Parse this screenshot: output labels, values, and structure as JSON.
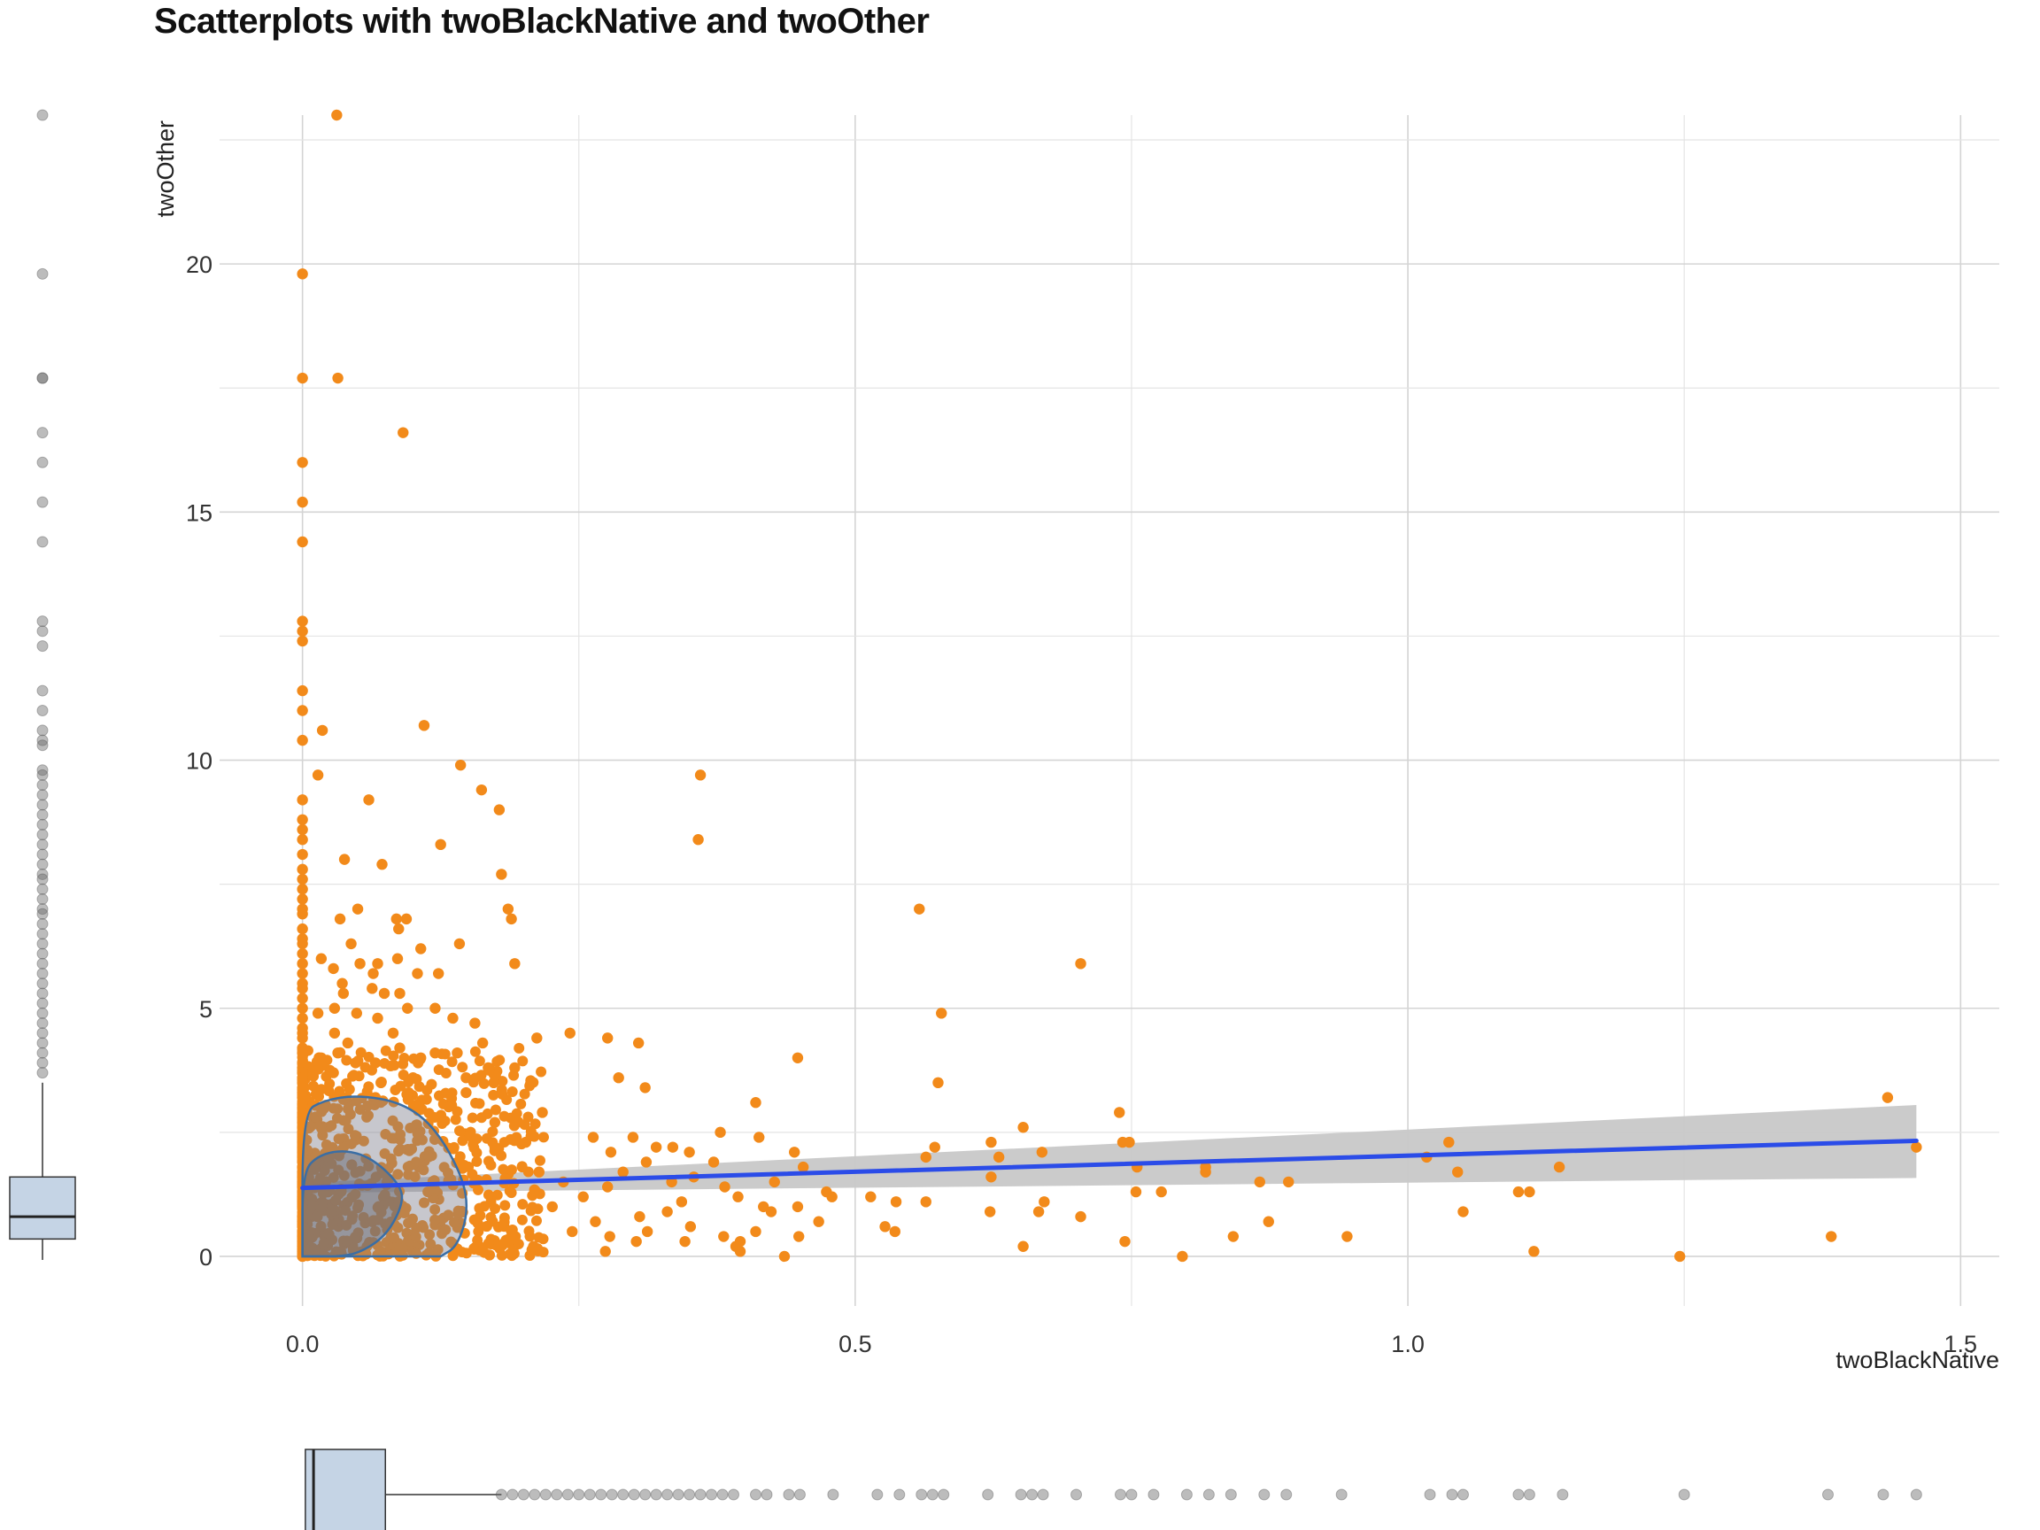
{
  "chart_data": {
    "type": "scatter",
    "title": "Scatterplots with twoBlackNative and twoOther",
    "xlabel": "twoBlackNative",
    "ylabel": "twoOther",
    "xlim": [
      -0.075,
      1.535
    ],
    "ylim": [
      -1.0,
      23.0
    ],
    "x_ticks": [
      0.0,
      0.5,
      1.0,
      1.5
    ],
    "x_tick_labels": [
      "0.0",
      "0.5",
      "1.0",
      "1.5"
    ],
    "y_ticks": [
      0,
      5,
      10,
      15,
      20
    ],
    "y_tick_labels": [
      "0",
      "5",
      "10",
      "15",
      "20"
    ],
    "grid": true,
    "point_color": "#f28a1a",
    "regression": {
      "type": "linear",
      "x_range": [
        0.0,
        1.46
      ],
      "intercept": 1.38,
      "slope": 0.65,
      "line_color": "#2b4ce8",
      "band_color": "#c8c8c8",
      "band_lower": [
        1.28,
        1.58
      ],
      "band_upper": [
        1.48,
        3.05
      ]
    },
    "density_contours": [
      {
        "level": "outer",
        "fill": "#7a7a88",
        "stroke": "#3a6ea5",
        "path": [
          [
            0.0,
            0.0
          ],
          [
            0.0,
            2.9
          ],
          [
            0.02,
            3.15
          ],
          [
            0.05,
            3.25
          ],
          [
            0.09,
            3.1
          ],
          [
            0.12,
            2.6
          ],
          [
            0.145,
            1.6
          ],
          [
            0.15,
            0.9
          ],
          [
            0.14,
            0.2
          ],
          [
            0.125,
            0.0
          ]
        ]
      },
      {
        "level": "inner",
        "fill": "#6e6e76",
        "stroke": "#3a6ea5",
        "path": [
          [
            0.0,
            0.0
          ],
          [
            0.0,
            1.7
          ],
          [
            0.015,
            2.05
          ],
          [
            0.04,
            2.15
          ],
          [
            0.065,
            1.95
          ],
          [
            0.09,
            1.4
          ],
          [
            0.09,
            1.0
          ],
          [
            0.075,
            0.4
          ],
          [
            0.05,
            0.05
          ],
          [
            0.03,
            0.0
          ]
        ]
      }
    ],
    "points": [
      [
        0.031,
        23.0
      ],
      [
        0.0,
        19.8
      ],
      [
        0.0,
        17.7
      ],
      [
        0.032,
        17.7
      ],
      [
        0.091,
        16.6
      ],
      [
        0.0,
        16.0
      ],
      [
        0.0,
        15.2
      ],
      [
        0.0,
        14.4
      ],
      [
        0.0,
        12.8
      ],
      [
        0.0,
        12.6
      ],
      [
        0.0,
        12.4
      ],
      [
        0.0,
        11.4
      ],
      [
        0.0,
        11.0
      ],
      [
        0.11,
        10.7
      ],
      [
        0.018,
        10.6
      ],
      [
        0.0,
        10.4
      ],
      [
        0.143,
        9.9
      ],
      [
        0.014,
        9.7
      ],
      [
        0.36,
        9.7
      ],
      [
        0.162,
        9.4
      ],
      [
        0.06,
        9.2
      ],
      [
        0.0,
        9.2
      ],
      [
        0.178,
        9.0
      ],
      [
        0.0,
        8.8
      ],
      [
        0.0,
        8.6
      ],
      [
        0.125,
        8.3
      ],
      [
        0.358,
        8.4
      ],
      [
        0.0,
        8.4
      ],
      [
        0.0,
        8.1
      ],
      [
        0.038,
        8.0
      ],
      [
        0.072,
        7.9
      ],
      [
        0.0,
        7.8
      ],
      [
        0.0,
        7.6
      ],
      [
        0.18,
        7.7
      ],
      [
        0.0,
        7.4
      ],
      [
        0.0,
        7.2
      ],
      [
        0.0,
        7.0
      ],
      [
        0.186,
        7.0
      ],
      [
        0.558,
        7.0
      ],
      [
        0.05,
        7.0
      ],
      [
        0.0,
        6.9
      ],
      [
        0.085,
        6.8
      ],
      [
        0.034,
        6.8
      ],
      [
        0.094,
        6.8
      ],
      [
        0.189,
        6.8
      ],
      [
        0.0,
        6.6
      ],
      [
        0.087,
        6.6
      ],
      [
        0.0,
        6.4
      ],
      [
        0.0,
        6.3
      ],
      [
        0.044,
        6.3
      ],
      [
        0.142,
        6.3
      ],
      [
        0.107,
        6.2
      ],
      [
        0.0,
        6.1
      ],
      [
        0.017,
        6.0
      ],
      [
        0.086,
        6.0
      ],
      [
        0.068,
        5.9
      ],
      [
        0.0,
        5.9
      ],
      [
        0.052,
        5.9
      ],
      [
        0.192,
        5.9
      ],
      [
        0.704,
        5.9
      ],
      [
        0.028,
        5.8
      ],
      [
        0.0,
        5.7
      ],
      [
        0.064,
        5.7
      ],
      [
        0.104,
        5.7
      ],
      [
        0.0,
        5.5
      ],
      [
        0.036,
        5.5
      ],
      [
        0.123,
        5.7
      ],
      [
        0.0,
        5.4
      ],
      [
        0.063,
        5.4
      ],
      [
        0.074,
        5.3
      ],
      [
        0.0,
        5.2
      ],
      [
        0.037,
        5.3
      ],
      [
        0.088,
        5.3
      ],
      [
        0.0,
        5.0
      ],
      [
        0.029,
        5.0
      ],
      [
        0.12,
        5.0
      ],
      [
        0.049,
        4.9
      ],
      [
        0.095,
        5.0
      ],
      [
        0.578,
        4.9
      ],
      [
        0.0,
        4.8
      ],
      [
        0.014,
        4.9
      ],
      [
        0.068,
        4.8
      ],
      [
        0.136,
        4.8
      ],
      [
        0.0,
        4.6
      ],
      [
        0.156,
        4.7
      ],
      [
        0.0,
        4.5
      ],
      [
        0.242,
        4.5
      ],
      [
        0.029,
        4.5
      ],
      [
        0.082,
        4.5
      ],
      [
        0.276,
        4.4
      ],
      [
        0.0,
        4.4
      ],
      [
        0.212,
        4.4
      ],
      [
        0.304,
        4.3
      ],
      [
        0.041,
        4.3
      ],
      [
        0.163,
        4.3
      ],
      [
        0.0,
        4.2
      ],
      [
        0.088,
        4.2
      ],
      [
        0.14,
        4.1
      ],
      [
        0.0,
        4.1
      ],
      [
        0.032,
        4.1
      ],
      [
        0.12,
        4.1
      ],
      [
        0.017,
        4.0
      ],
      [
        0.107,
        4.0
      ],
      [
        0.448,
        4.0
      ],
      [
        0.0,
        3.9
      ],
      [
        0.048,
        3.9
      ],
      [
        0.066,
        3.9
      ],
      [
        0.192,
        3.8
      ],
      [
        0.0,
        3.8
      ],
      [
        0.168,
        3.8
      ],
      [
        0.0,
        3.7
      ],
      [
        0.028,
        3.7
      ],
      [
        0.1,
        3.6
      ],
      [
        0.0,
        3.6
      ],
      [
        0.148,
        3.6
      ],
      [
        0.286,
        3.6
      ],
      [
        0.575,
        3.5
      ],
      [
        0.0,
        3.5
      ],
      [
        0.071,
        3.5
      ],
      [
        0.173,
        3.5
      ],
      [
        0.31,
        3.4
      ],
      [
        0.0,
        3.3
      ],
      [
        0.096,
        3.3
      ],
      [
        0.148,
        3.3
      ],
      [
        0.41,
        3.1
      ],
      [
        1.434,
        3.2
      ],
      [
        0.0,
        3.2
      ],
      [
        0.066,
        3.2
      ],
      [
        0.0,
        3.0
      ],
      [
        0.739,
        2.9
      ],
      [
        0.0,
        2.9
      ],
      [
        0.217,
        2.9
      ],
      [
        0.0,
        2.8
      ],
      [
        0.174,
        2.7
      ],
      [
        0.0,
        2.6
      ],
      [
        0.652,
        2.6
      ],
      [
        0.0,
        2.5
      ],
      [
        0.378,
        2.5
      ],
      [
        0.0,
        2.4
      ],
      [
        0.202,
        2.3
      ],
      [
        0.263,
        2.4
      ],
      [
        0.299,
        2.4
      ],
      [
        0.413,
        2.4
      ],
      [
        0.623,
        2.3
      ],
      [
        0.0,
        2.3
      ],
      [
        0.742,
        2.3
      ],
      [
        0.748,
        2.3
      ],
      [
        1.037,
        2.3
      ],
      [
        0.0,
        2.2
      ],
      [
        0.174,
        2.2
      ],
      [
        0.32,
        2.2
      ],
      [
        0.335,
        2.2
      ],
      [
        0.572,
        2.2
      ],
      [
        0.0,
        2.1
      ],
      [
        0.279,
        2.1
      ],
      [
        0.35,
        2.1
      ],
      [
        0.445,
        2.1
      ],
      [
        0.564,
        2.0
      ],
      [
        0.669,
        2.1
      ],
      [
        0.0,
        2.0
      ],
      [
        0.63,
        2.0
      ],
      [
        1.017,
        2.0
      ],
      [
        0.0,
        1.9
      ],
      [
        0.311,
        1.9
      ],
      [
        0.372,
        1.9
      ],
      [
        0.453,
        1.8
      ],
      [
        0.755,
        1.8
      ],
      [
        0.817,
        1.8
      ],
      [
        1.137,
        1.8
      ],
      [
        0.0,
        1.7
      ],
      [
        0.214,
        1.7
      ],
      [
        0.29,
        1.7
      ],
      [
        0.817,
        1.7
      ],
      [
        1.045,
        1.7
      ],
      [
        0.0,
        1.6
      ],
      [
        0.354,
        1.6
      ],
      [
        0.623,
        1.6
      ],
      [
        0.0,
        1.5
      ],
      [
        0.236,
        1.5
      ],
      [
        0.334,
        1.5
      ],
      [
        0.427,
        1.5
      ],
      [
        0.866,
        1.5
      ],
      [
        0.892,
        1.5
      ],
      [
        0.0,
        1.4
      ],
      [
        0.276,
        1.4
      ],
      [
        0.382,
        1.4
      ],
      [
        0.474,
        1.3
      ],
      [
        0.754,
        1.3
      ],
      [
        0.777,
        1.3
      ],
      [
        1.1,
        1.3
      ],
      [
        1.11,
        1.3
      ],
      [
        0.0,
        1.2
      ],
      [
        0.254,
        1.2
      ],
      [
        0.394,
        1.2
      ],
      [
        0.479,
        1.2
      ],
      [
        0.514,
        1.2
      ],
      [
        0.564,
        1.1
      ],
      [
        0.0,
        1.1
      ],
      [
        0.343,
        1.1
      ],
      [
        0.417,
        1.0
      ],
      [
        0.537,
        1.1
      ],
      [
        0.671,
        1.1
      ],
      [
        0.0,
        1.0
      ],
      [
        0.226,
        1.0
      ],
      [
        0.33,
        0.9
      ],
      [
        0.424,
        0.9
      ],
      [
        0.448,
        1.0
      ],
      [
        0.622,
        0.9
      ],
      [
        0.666,
        0.9
      ],
      [
        1.05,
        0.9
      ],
      [
        0.0,
        0.8
      ],
      [
        0.305,
        0.8
      ],
      [
        0.467,
        0.7
      ],
      [
        0.704,
        0.8
      ],
      [
        0.874,
        0.7
      ],
      [
        0.0,
        0.7
      ],
      [
        0.265,
        0.7
      ],
      [
        0.351,
        0.6
      ],
      [
        0.527,
        0.6
      ],
      [
        0.536,
        0.5
      ],
      [
        0.0,
        0.6
      ],
      [
        0.244,
        0.5
      ],
      [
        0.312,
        0.5
      ],
      [
        0.41,
        0.5
      ],
      [
        0.449,
        0.4
      ],
      [
        0.0,
        0.4
      ],
      [
        0.278,
        0.4
      ],
      [
        0.381,
        0.4
      ],
      [
        0.396,
        0.3
      ],
      [
        0.842,
        0.4
      ],
      [
        0.945,
        0.4
      ],
      [
        1.383,
        0.4
      ],
      [
        0.0,
        0.3
      ],
      [
        0.302,
        0.3
      ],
      [
        0.346,
        0.3
      ],
      [
        0.744,
        0.3
      ],
      [
        0.0,
        0.2
      ],
      [
        0.209,
        0.2
      ],
      [
        0.392,
        0.2
      ],
      [
        0.652,
        0.2
      ],
      [
        0.0,
        0.1
      ],
      [
        0.274,
        0.1
      ],
      [
        0.396,
        0.1
      ],
      [
        1.114,
        0.1
      ],
      [
        0.0,
        0.0
      ],
      [
        0.436,
        0.0
      ],
      [
        0.796,
        0.0
      ],
      [
        1.246,
        0.0
      ],
      [
        1.46,
        2.2
      ],
      [
        0.0,
        0.5
      ],
      [
        0.0,
        1.3
      ],
      [
        0.0,
        1.8
      ],
      [
        0.0,
        2.7
      ],
      [
        0.0,
        3.4
      ]
    ],
    "dense_cluster": {
      "x_range": [
        0.0,
        0.22
      ],
      "y_range": [
        0.0,
        4.2
      ],
      "count": 900,
      "color": "#f28a1a",
      "seed": 7
    },
    "marginal_y_boxplot": {
      "axis": "twoOther",
      "q1": 0.35,
      "median": 0.8,
      "q3": 1.6,
      "whisker_low": 0.0,
      "whisker_high": 3.5,
      "outliers": [
        23.0,
        19.8,
        17.7,
        17.7,
        16.6,
        16.0,
        15.2,
        14.4,
        12.8,
        12.6,
        12.3,
        11.4,
        11.0,
        10.6,
        10.4,
        10.3,
        9.8,
        9.7,
        9.5,
        9.3,
        9.1,
        8.9,
        8.7,
        8.5,
        8.3,
        8.1,
        7.9,
        7.7,
        7.6,
        7.4,
        7.2,
        7.0,
        6.9,
        6.7,
        6.5,
        6.3,
        6.1,
        5.9,
        5.7,
        5.5,
        5.3,
        5.1,
        4.9,
        4.7,
        4.5,
        4.3,
        4.1,
        3.9,
        3.7
      ],
      "fill": "#c5d4e5",
      "outlier_color": "#6b6b6b"
    },
    "marginal_x_boxplot": {
      "axis": "twoBlackNative",
      "q1": 0.005,
      "median": 0.01,
      "q3": 0.075,
      "whisker_low": 0.0,
      "whisker_high": 0.18,
      "outliers": [
        0.18,
        0.19,
        0.2,
        0.21,
        0.22,
        0.23,
        0.24,
        0.25,
        0.26,
        0.27,
        0.28,
        0.29,
        0.3,
        0.31,
        0.32,
        0.33,
        0.34,
        0.35,
        0.36,
        0.37,
        0.38,
        0.39,
        0.41,
        0.42,
        0.44,
        0.45,
        0.48,
        0.52,
        0.54,
        0.56,
        0.57,
        0.58,
        0.62,
        0.65,
        0.66,
        0.67,
        0.7,
        0.74,
        0.75,
        0.77,
        0.8,
        0.82,
        0.84,
        0.87,
        0.89,
        0.94,
        1.02,
        1.04,
        1.05,
        1.1,
        1.11,
        1.14,
        1.25,
        1.38,
        1.43,
        1.46
      ],
      "fill": "#c5d4e5",
      "outlier_color": "#6b6b6b"
    }
  }
}
